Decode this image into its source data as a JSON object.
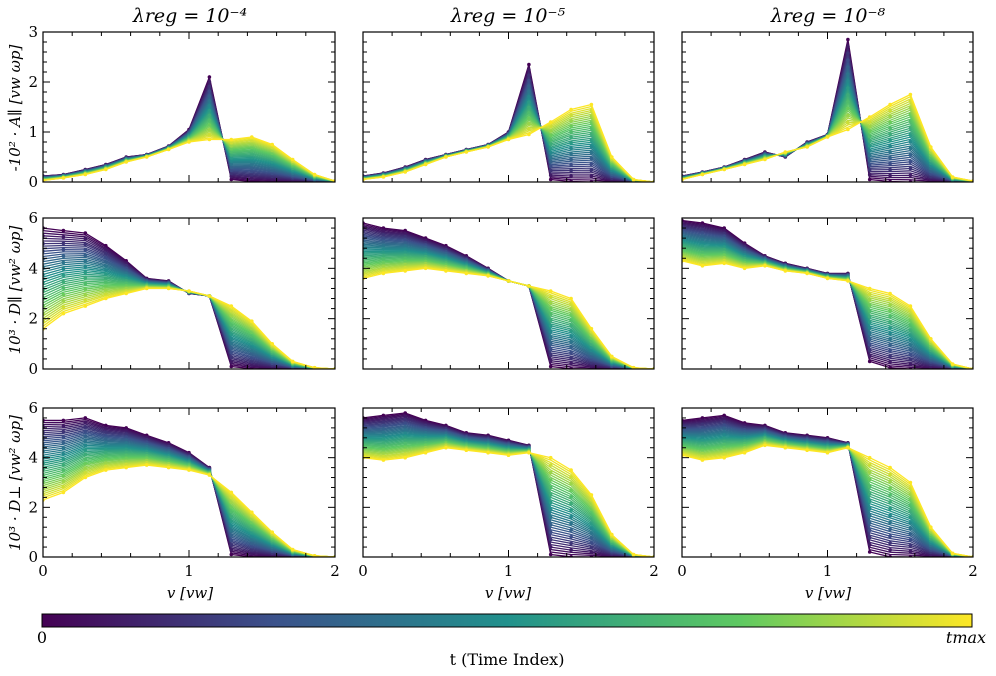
{
  "figure": {
    "col_titles": [
      "λreg = 10⁻⁴",
      "λreg = 10⁻⁵",
      "λreg = 10⁻⁸"
    ],
    "row_ylabels": [
      "-10² · A∥ [vw ωp]",
      "10³ · D∥ [vw² ωp]",
      "10³ · D⊥ [vw² ωp]"
    ],
    "xlabel": "v [vw]",
    "colorbar": {
      "label": "t (Time Index)",
      "tick_min": "0",
      "tick_max": "tmax",
      "colormap": "viridis",
      "colors": [
        "#440154",
        "#3b528b",
        "#21918c",
        "#5ec962",
        "#fde725"
      ]
    }
  },
  "chart_data": [
    {
      "type": "line",
      "panel": "row1-col1",
      "title": "λreg = 10⁻⁴",
      "ylabel": "-10² · A∥ [vw ωp]",
      "xlim": [
        0,
        2
      ],
      "ylim": [
        0,
        3
      ],
      "xticks": [
        "0",
        "1",
        "2"
      ],
      "yticks": [
        "0",
        "1",
        "2",
        "3"
      ],
      "x": [
        0,
        0.14,
        0.29,
        0.43,
        0.57,
        0.71,
        0.86,
        1.0,
        1.14,
        1.29,
        1.43,
        1.57,
        1.71,
        1.86,
        2.0
      ],
      "series": [
        {
          "name": "t_start",
          "values": [
            0.12,
            0.15,
            0.25,
            0.35,
            0.5,
            0.55,
            0.72,
            1.05,
            2.1,
            0.05,
            0.01,
            0,
            0,
            0,
            0
          ]
        },
        {
          "name": "t_max",
          "values": [
            0.03,
            0.08,
            0.15,
            0.25,
            0.4,
            0.5,
            0.65,
            0.8,
            0.85,
            0.85,
            0.9,
            0.75,
            0.45,
            0.15,
            0.02
          ]
        }
      ]
    },
    {
      "type": "line",
      "panel": "row1-col2",
      "title": "λreg = 10⁻⁵",
      "xlim": [
        0,
        2
      ],
      "ylim": [
        0,
        3
      ],
      "xticks": [
        "0",
        "1",
        "2"
      ],
      "x": [
        0,
        0.14,
        0.29,
        0.43,
        0.57,
        0.71,
        0.86,
        1.0,
        1.14,
        1.29,
        1.43,
        1.57,
        1.71,
        1.86,
        2.0
      ],
      "series": [
        {
          "name": "t_start",
          "values": [
            0.12,
            0.18,
            0.3,
            0.45,
            0.55,
            0.65,
            0.75,
            1.0,
            2.35,
            0.05,
            0.01,
            0,
            0,
            0,
            0
          ]
        },
        {
          "name": "t_max",
          "values": [
            0.05,
            0.1,
            0.2,
            0.35,
            0.5,
            0.6,
            0.7,
            0.85,
            0.95,
            1.2,
            1.45,
            1.55,
            0.5,
            0.05,
            0
          ]
        }
      ]
    },
    {
      "type": "line",
      "panel": "row1-col3",
      "title": "λreg = 10⁻⁸",
      "xlim": [
        0,
        2
      ],
      "ylim": [
        0,
        3
      ],
      "xticks": [
        "0",
        "1",
        "2"
      ],
      "x": [
        0,
        0.14,
        0.29,
        0.43,
        0.57,
        0.71,
        0.86,
        1.0,
        1.14,
        1.29,
        1.43,
        1.57,
        1.71,
        1.86,
        2.0
      ],
      "series": [
        {
          "name": "t_start",
          "values": [
            0.12,
            0.2,
            0.3,
            0.45,
            0.6,
            0.5,
            0.8,
            0.95,
            2.85,
            0.05,
            0.01,
            0,
            0,
            0,
            0
          ]
        },
        {
          "name": "t_max",
          "values": [
            0.05,
            0.15,
            0.25,
            0.35,
            0.45,
            0.6,
            0.7,
            0.9,
            1.05,
            1.3,
            1.55,
            1.75,
            0.7,
            0.1,
            0.02
          ]
        }
      ]
    },
    {
      "type": "line",
      "panel": "row2-col1",
      "ylabel": "10³ · D∥ [vw² ωp]",
      "xlim": [
        0,
        2
      ],
      "ylim": [
        0,
        6
      ],
      "xticks": [
        "0",
        "1",
        "2"
      ],
      "yticks": [
        "0",
        "2",
        "4",
        "6"
      ],
      "x": [
        0,
        0.14,
        0.29,
        0.43,
        0.57,
        0.71,
        0.86,
        1.0,
        1.14,
        1.29,
        1.43,
        1.57,
        1.71,
        1.86,
        2.0
      ],
      "series": [
        {
          "name": "t_start",
          "values": [
            5.6,
            5.5,
            5.4,
            4.9,
            4.3,
            3.6,
            3.5,
            3.0,
            2.9,
            0.1,
            0.01,
            0,
            0,
            0,
            0
          ]
        },
        {
          "name": "t_max",
          "values": [
            1.6,
            2.2,
            2.5,
            2.8,
            3.0,
            3.2,
            3.2,
            3.1,
            2.9,
            2.5,
            1.9,
            1.0,
            0.3,
            0.05,
            0
          ]
        }
      ]
    },
    {
      "type": "line",
      "panel": "row2-col2",
      "xlim": [
        0,
        2
      ],
      "ylim": [
        0,
        6
      ],
      "xticks": [
        "0",
        "1",
        "2"
      ],
      "x": [
        0,
        0.14,
        0.29,
        0.43,
        0.57,
        0.71,
        0.86,
        1.0,
        1.14,
        1.29,
        1.43,
        1.57,
        1.71,
        1.86,
        2.0
      ],
      "series": [
        {
          "name": "t_start",
          "values": [
            5.8,
            5.6,
            5.5,
            5.2,
            4.9,
            4.5,
            4.0,
            3.5,
            3.3,
            0.1,
            0.01,
            0,
            0,
            0,
            0
          ]
        },
        {
          "name": "t_max",
          "values": [
            3.6,
            3.8,
            3.9,
            4.0,
            3.9,
            3.8,
            3.7,
            3.5,
            3.3,
            3.1,
            2.8,
            1.6,
            0.5,
            0.05,
            0
          ]
        }
      ]
    },
    {
      "type": "line",
      "panel": "row2-col3",
      "xlim": [
        0,
        2
      ],
      "ylim": [
        0,
        6
      ],
      "xticks": [
        "0",
        "1",
        "2"
      ],
      "x": [
        0,
        0.14,
        0.29,
        0.43,
        0.57,
        0.71,
        0.86,
        1.0,
        1.14,
        1.29,
        1.43,
        1.57,
        1.71,
        1.86,
        2.0
      ],
      "series": [
        {
          "name": "t_start",
          "values": [
            5.9,
            5.8,
            5.6,
            5.0,
            4.5,
            4.2,
            4.0,
            3.8,
            3.8,
            0.3,
            0.05,
            0,
            0,
            0,
            0
          ]
        },
        {
          "name": "t_max",
          "values": [
            4.3,
            4.1,
            4.2,
            4.0,
            4.1,
            3.9,
            3.8,
            3.6,
            3.5,
            3.2,
            3.0,
            2.5,
            1.2,
            0.2,
            0
          ]
        }
      ]
    },
    {
      "type": "line",
      "panel": "row3-col1",
      "ylabel": "10³ · D⊥ [vw² ωp]",
      "xlabel": "v [vw]",
      "xlim": [
        0,
        2
      ],
      "ylim": [
        0,
        6
      ],
      "xticks": [
        "0",
        "1",
        "2"
      ],
      "yticks": [
        "0",
        "2",
        "4",
        "6"
      ],
      "x": [
        0,
        0.14,
        0.29,
        0.43,
        0.57,
        0.71,
        0.86,
        1.0,
        1.14,
        1.29,
        1.43,
        1.57,
        1.71,
        1.86,
        2.0
      ],
      "series": [
        {
          "name": "t_start",
          "values": [
            5.5,
            5.5,
            5.6,
            5.3,
            5.2,
            4.9,
            4.6,
            4.2,
            3.6,
            0.1,
            0.01,
            0,
            0,
            0,
            0
          ]
        },
        {
          "name": "t_max",
          "values": [
            2.3,
            2.6,
            3.2,
            3.5,
            3.6,
            3.7,
            3.6,
            3.5,
            3.3,
            2.6,
            1.8,
            1.0,
            0.3,
            0.05,
            0
          ]
        }
      ]
    },
    {
      "type": "line",
      "panel": "row3-col2",
      "xlabel": "v [vw]",
      "xlim": [
        0,
        2
      ],
      "ylim": [
        0,
        6
      ],
      "xticks": [
        "0",
        "1",
        "2"
      ],
      "x": [
        0,
        0.14,
        0.29,
        0.43,
        0.57,
        0.71,
        0.86,
        1.0,
        1.14,
        1.29,
        1.43,
        1.57,
        1.71,
        1.86,
        2.0
      ],
      "series": [
        {
          "name": "t_start",
          "values": [
            5.6,
            5.7,
            5.8,
            5.5,
            5.3,
            5.0,
            4.9,
            4.7,
            4.5,
            0.1,
            0.01,
            0,
            0,
            0,
            0
          ]
        },
        {
          "name": "t_max",
          "values": [
            4.0,
            3.9,
            4.0,
            4.2,
            4.4,
            4.3,
            4.2,
            4.1,
            4.2,
            4.0,
            3.5,
            2.5,
            0.9,
            0.1,
            0
          ]
        }
      ]
    },
    {
      "type": "line",
      "panel": "row3-col3",
      "xlabel": "v [vw]",
      "xlim": [
        0,
        2
      ],
      "ylim": [
        0,
        6
      ],
      "xticks": [
        "0",
        "1",
        "2"
      ],
      "x": [
        0,
        0.14,
        0.29,
        0.43,
        0.57,
        0.71,
        0.86,
        1.0,
        1.14,
        1.29,
        1.43,
        1.57,
        1.71,
        1.86,
        2.0
      ],
      "series": [
        {
          "name": "t_start",
          "values": [
            5.5,
            5.6,
            5.7,
            5.4,
            5.3,
            5.0,
            4.9,
            4.8,
            4.6,
            0.2,
            0.01,
            0,
            0,
            0,
            0
          ]
        },
        {
          "name": "t_max",
          "values": [
            4.1,
            3.9,
            4.0,
            4.2,
            4.5,
            4.4,
            4.3,
            4.2,
            4.4,
            4.0,
            3.6,
            3.0,
            1.2,
            0.15,
            0
          ]
        }
      ]
    }
  ]
}
